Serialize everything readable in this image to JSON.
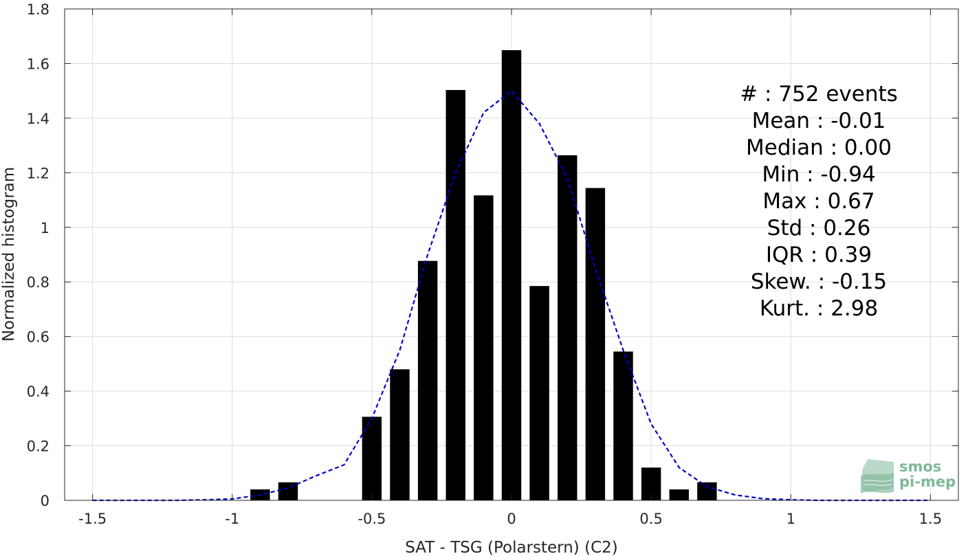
{
  "chart_data": {
    "type": "bar",
    "xlabel": "SAT - TSG (Polarstern) (C2)",
    "ylabel": "Normalized histogram",
    "xlim": [
      -1.6,
      1.6
    ],
    "ylim": [
      0,
      1.8
    ],
    "xticks": [
      -1.5,
      -1,
      -0.5,
      0,
      0.5,
      1,
      1.5
    ],
    "xtick_labels": [
      "-1.5",
      "-1",
      "-0.5",
      "0",
      "0.5",
      "1",
      "1.5"
    ],
    "yticks": [
      0,
      0.2,
      0.4,
      0.6,
      0.8,
      1,
      1.2,
      1.4,
      1.6,
      1.8
    ],
    "ytick_labels": [
      "0",
      "0.2",
      "0.4",
      "0.6",
      "0.8",
      "1",
      "1.2",
      "1.4",
      "1.6",
      "1.8"
    ],
    "grid": true,
    "bar_width": 0.07,
    "bars": {
      "x": [
        -0.9,
        -0.8,
        -0.5,
        -0.4,
        -0.3,
        -0.2,
        -0.1,
        0.0,
        0.1,
        0.2,
        0.3,
        0.4,
        0.5,
        0.6,
        0.7
      ],
      "values": [
        0.04,
        0.066,
        0.306,
        0.48,
        0.877,
        1.503,
        1.117,
        1.649,
        0.785,
        1.264,
        1.144,
        0.545,
        0.12,
        0.04,
        0.066
      ],
      "color": "#000000"
    },
    "fit_curve": {
      "style": "dashed",
      "color": "#0000cc",
      "x": [
        -1.5,
        -1.4,
        -1.3,
        -1.2,
        -1.1,
        -1.0,
        -0.9,
        -0.8,
        -0.7,
        -0.6,
        -0.5,
        -0.4,
        -0.3,
        -0.2,
        -0.1,
        0.0,
        0.1,
        0.2,
        0.3,
        0.4,
        0.5,
        0.6,
        0.7,
        0.8,
        0.9,
        1.0,
        1.1,
        1.2,
        1.3,
        1.4,
        1.5
      ],
      "y": [
        0.0,
        0.0,
        0.0,
        0.0,
        0.002,
        0.005,
        0.02,
        0.045,
        0.09,
        0.13,
        0.3,
        0.55,
        0.9,
        1.2,
        1.42,
        1.5,
        1.38,
        1.18,
        0.85,
        0.55,
        0.28,
        0.12,
        0.05,
        0.02,
        0.006,
        0.002,
        0.0,
        0.0,
        0.0,
        0.0,
        0.0
      ]
    },
    "stats_text": [
      "#  : 752 events",
      "Mean : -0.01",
      "Median : 0.00",
      "Min : -0.94",
      "Max : 0.67",
      "Std : 0.26",
      "IQR : 0.39",
      "Skew. : -0.15",
      "Kurt. : 2.98"
    ]
  },
  "logo": {
    "line1": "smos",
    "line2": "pi-mep",
    "color": "#7fb89a"
  }
}
